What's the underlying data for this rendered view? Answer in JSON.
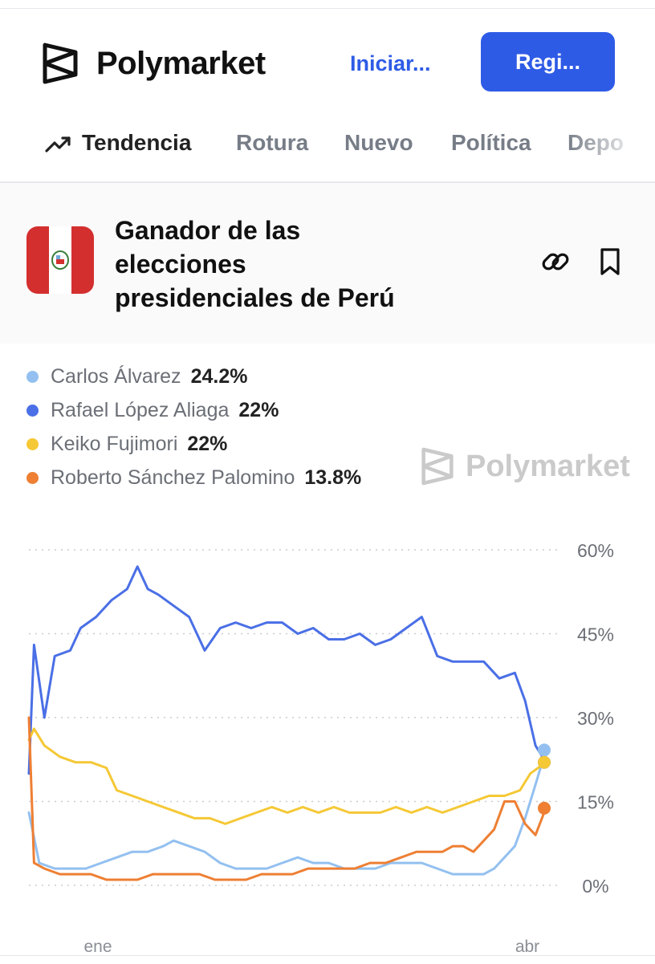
{
  "header": {
    "brand": "Polymarket",
    "login_label": "Iniciar...",
    "register_label": "Regi..."
  },
  "nav": {
    "items": [
      {
        "label": "Tendencia",
        "icon": "trending-up-icon",
        "active": true
      },
      {
        "label": "Rotura",
        "active": false
      },
      {
        "label": "Nuevo",
        "active": false
      },
      {
        "label": "Política",
        "active": false
      },
      {
        "label": "Depo",
        "active": false
      }
    ]
  },
  "market": {
    "title_lines": [
      "Ganador de las",
      "elecciones",
      "presidenciales de Perú"
    ],
    "flag_icon": "peru-flag-icon",
    "actions": [
      "link-icon",
      "bookmark-icon"
    ]
  },
  "legend": [
    {
      "name": "Carlos Álvarez",
      "value": "24.2%",
      "color": "#93c0f0"
    },
    {
      "name": "Rafael López Aliaga",
      "value": "22%",
      "color": "#4a6fe6"
    },
    {
      "name": "Keiko Fujimori",
      "value": "22%",
      "color": "#f5c835"
    },
    {
      "name": "Roberto Sánchez Palomino",
      "value": "13.8%",
      "color": "#ee7f33"
    }
  ],
  "watermark": "Polymarket",
  "chart_data": {
    "type": "line",
    "xlabel": "",
    "ylabel": "",
    "ylim": [
      0,
      60
    ],
    "yticks": [
      0,
      15,
      30,
      45,
      60
    ],
    "ytick_labels": [
      "0%",
      "15%",
      "30%",
      "45%",
      "60%"
    ],
    "xtick_labels": [
      "ene",
      "abr"
    ],
    "grid": true,
    "series": [
      {
        "name": "Rafael López Aliaga",
        "color": "#4a6fe6",
        "x": [
          0,
          1,
          3,
          5,
          8,
          10,
          13,
          16,
          19,
          21,
          23,
          25,
          28,
          31,
          34,
          37,
          40,
          43,
          46,
          49,
          52,
          55,
          58,
          61,
          64,
          67,
          70,
          73,
          76,
          79,
          82,
          85,
          88,
          91,
          94,
          96,
          98,
          100
        ],
        "y": [
          20,
          43,
          30,
          41,
          42,
          46,
          48,
          51,
          53,
          57,
          53,
          52,
          50,
          48,
          42,
          46,
          47,
          46,
          47,
          47,
          45,
          46,
          44,
          44,
          45,
          43,
          44,
          46,
          48,
          41,
          40,
          40,
          40,
          37,
          38,
          33,
          25,
          22
        ]
      },
      {
        "name": "Carlos Álvarez",
        "color": "#93c0f0",
        "x": [
          0,
          2,
          5,
          8,
          11,
          14,
          17,
          20,
          23,
          26,
          28,
          31,
          34,
          37,
          40,
          43,
          46,
          49,
          52,
          55,
          58,
          61,
          64,
          67,
          70,
          73,
          76,
          79,
          82,
          85,
          88,
          90,
          92,
          94,
          96,
          98,
          100
        ],
        "y": [
          13,
          4,
          3,
          3,
          3,
          4,
          5,
          6,
          6,
          7,
          8,
          7,
          6,
          4,
          3,
          3,
          3,
          4,
          5,
          4,
          4,
          3,
          3,
          3,
          4,
          4,
          4,
          3,
          2,
          2,
          2,
          3,
          5,
          7,
          12,
          18,
          24.2
        ]
      },
      {
        "name": "Keiko Fujimori",
        "color": "#f5c835",
        "x": [
          0,
          1,
          3,
          6,
          9,
          12,
          15,
          17,
          20,
          23,
          26,
          29,
          32,
          35,
          38,
          41,
          44,
          47,
          50,
          53,
          56,
          59,
          62,
          65,
          68,
          71,
          74,
          77,
          80,
          83,
          86,
          89,
          92,
          95,
          97,
          100
        ],
        "y": [
          26,
          28,
          25,
          23,
          22,
          22,
          21,
          17,
          16,
          15,
          14,
          13,
          12,
          12,
          11,
          12,
          13,
          14,
          13,
          14,
          13,
          14,
          13,
          13,
          13,
          14,
          13,
          14,
          13,
          14,
          15,
          16,
          16,
          17,
          20,
          22
        ]
      },
      {
        "name": "Roberto Sánchez Palomino",
        "color": "#ee7f33",
        "x": [
          0,
          1,
          3,
          6,
          9,
          12,
          15,
          18,
          21,
          24,
          27,
          30,
          33,
          36,
          39,
          42,
          45,
          48,
          51,
          54,
          57,
          60,
          63,
          66,
          69,
          72,
          75,
          78,
          80,
          82,
          84,
          86,
          88,
          90,
          92,
          94,
          96,
          98,
          100
        ],
        "y": [
          30,
          4,
          3,
          2,
          2,
          2,
          1,
          1,
          1,
          2,
          2,
          2,
          2,
          1,
          1,
          1,
          2,
          2,
          2,
          3,
          3,
          3,
          3,
          4,
          4,
          5,
          6,
          6,
          6,
          7,
          7,
          6,
          8,
          10,
          15,
          15,
          11,
          9,
          13.8
        ]
      }
    ]
  }
}
